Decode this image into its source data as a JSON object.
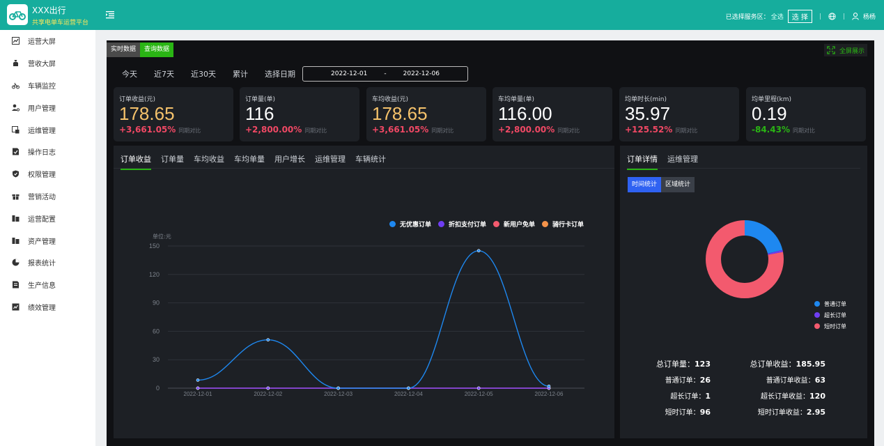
{
  "header": {
    "app_title": "XXX出行",
    "app_subtitle": "共享电单车运营平台",
    "service_area_label": "已选择服务区：",
    "service_area_value": "全选",
    "select_button": "选 择",
    "username": "杨杨"
  },
  "sidebar": {
    "items": [
      {
        "label": "运营大屏",
        "icon": "chart-icon",
        "active": true
      },
      {
        "label": "营收大屏",
        "icon": "money-bag-icon",
        "active": false
      },
      {
        "label": "车辆监控",
        "icon": "bike-icon",
        "active": false
      },
      {
        "label": "用户管理",
        "icon": "user-gear-icon",
        "active": false
      },
      {
        "label": "运维管理",
        "icon": "maintenance-icon",
        "active": false
      },
      {
        "label": "操作日志",
        "icon": "log-icon",
        "active": false
      },
      {
        "label": "权限管理",
        "icon": "shield-icon",
        "active": false
      },
      {
        "label": "营销活动",
        "icon": "gift-icon",
        "active": false
      },
      {
        "label": "运营配置",
        "icon": "config-icon",
        "active": false
      },
      {
        "label": "资产管理",
        "icon": "asset-icon",
        "active": false
      },
      {
        "label": "报表统计",
        "icon": "pie-icon",
        "active": false
      },
      {
        "label": "生产信息",
        "icon": "production-icon",
        "active": false
      },
      {
        "label": "绩效管理",
        "icon": "performance-icon",
        "active": false
      }
    ]
  },
  "mode_tabs": {
    "realtime": "实时数据",
    "query": "查询数据"
  },
  "fullscreen_label": "全屏展示",
  "range": {
    "today": "今天",
    "last7": "近7天",
    "last30": "近30天",
    "total": "累计",
    "pick_date": "选择日期",
    "start_date": "2022-12-01",
    "date_sep": "-",
    "end_date": "2022-12-06"
  },
  "kpis": [
    {
      "label": "订单收益(元)",
      "value": "178.65",
      "delta": "+3,661.05%",
      "note": "同期对比",
      "value_color": "#f5c26b",
      "delta_color": "#f04864"
    },
    {
      "label": "订单量(单)",
      "value": "116",
      "delta": "+2,800.00%",
      "note": "同期对比",
      "value_color": "#ffffff",
      "delta_color": "#f04864"
    },
    {
      "label": "车均收益(元)",
      "value": "178.65",
      "delta": "+3,661.05%",
      "note": "同期对比",
      "value_color": "#f5c26b",
      "delta_color": "#f04864"
    },
    {
      "label": "车均单量(单)",
      "value": "116.00",
      "delta": "+2,800.00%",
      "note": "同期对比",
      "value_color": "#ffffff",
      "delta_color": "#f04864"
    },
    {
      "label": "均单时长(min)",
      "value": "35.97",
      "delta": "+125.52%",
      "note": "同期对比",
      "value_color": "#ffffff",
      "delta_color": "#f04864"
    },
    {
      "label": "均单里程(km)",
      "value": "0.19",
      "delta": "-84.43%",
      "note": "同期对比",
      "value_color": "#ffffff",
      "delta_color": "#2ab514"
    }
  ],
  "chart_tabs": [
    "订单收益",
    "订单量",
    "车均收益",
    "车均单量",
    "用户增长",
    "运维管理",
    "车辆统计"
  ],
  "chart_data": {
    "type": "line",
    "ylabel": "单位:元",
    "ylim": [
      0,
      150
    ],
    "yticks": [
      0,
      30,
      60,
      90,
      120,
      150
    ],
    "categories": [
      "2022-12-01",
      "2022-12-02",
      "2022-12-03",
      "2022-12-04",
      "2022-12-05",
      "2022-12-06"
    ],
    "series": [
      {
        "name": "无优惠订单",
        "color": "#1e88f0",
        "values": [
          8.5,
          51,
          0,
          0,
          145,
          2
        ]
      },
      {
        "name": "折扣支付订单",
        "color": "#6f3df2",
        "values": [
          0,
          0,
          0,
          0,
          0,
          0
        ]
      },
      {
        "name": "新用户免单",
        "color": "#f35a6e",
        "values": [
          0,
          0,
          0,
          0,
          0,
          0
        ]
      },
      {
        "name": "骑行卡订单",
        "color": "#f5934a",
        "values": [
          0,
          0,
          0,
          0,
          0,
          0
        ]
      }
    ],
    "legend_position": "top-right",
    "grid": true
  },
  "detail": {
    "tabs": [
      "订单详情",
      "运维管理"
    ],
    "sub_tabs": [
      "时间统计",
      "区域统计"
    ],
    "donut": {
      "type": "donut",
      "slices": [
        {
          "name": "普通订单",
          "value": 26,
          "color": "#1e88f0"
        },
        {
          "name": "超长订单",
          "value": 1,
          "color": "#6f3df2"
        },
        {
          "name": "短时订单",
          "value": 96,
          "color": "#f35a6e"
        }
      ]
    },
    "stats_left": [
      {
        "label": "总订单量：",
        "value": "123"
      },
      {
        "label": "普通订单：",
        "value": "26"
      },
      {
        "label": "超长订单：",
        "value": "1"
      },
      {
        "label": "短时订单：",
        "value": "96"
      }
    ],
    "stats_right": [
      {
        "label": "总订单收益：",
        "value": "185.95"
      },
      {
        "label": "普通订单收益：",
        "value": "63"
      },
      {
        "label": "超长订单收益：",
        "value": "120"
      },
      {
        "label": "短时订单收益：",
        "value": "2.95"
      }
    ]
  }
}
